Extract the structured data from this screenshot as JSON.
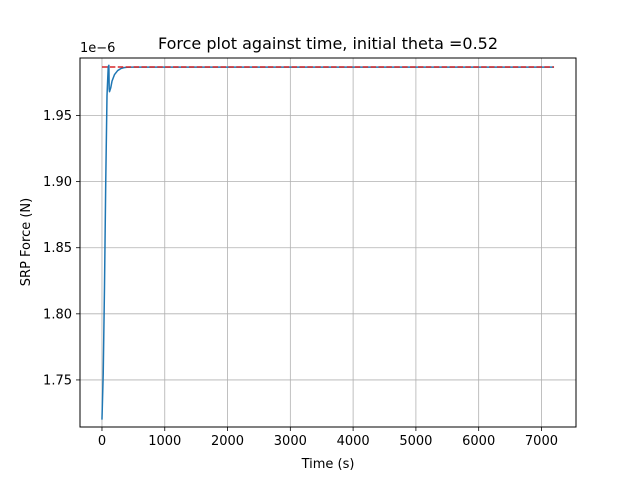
{
  "chart_data": {
    "type": "line",
    "title": "Force plot against time, initial theta =0.52",
    "xlabel": "Time (s)",
    "ylabel": "SRP Force (N)",
    "y_offset_text": "1e−6",
    "xlim": [
      -350,
      7550
    ],
    "ylim": [
      1.7144,
      1.9935
    ],
    "y_scale_factor": 1e-06,
    "grid": true,
    "x_ticks": [
      0,
      1000,
      2000,
      3000,
      4000,
      5000,
      6000,
      7000
    ],
    "x_tick_labels": [
      "0",
      "1000",
      "2000",
      "3000",
      "4000",
      "5000",
      "6000",
      "7000"
    ],
    "y_ticks": [
      1.75,
      1.8,
      1.85,
      1.9,
      1.95
    ],
    "y_tick_labels": [
      "1.75",
      "1.80",
      "1.85",
      "1.90",
      "1.95"
    ],
    "series": [
      {
        "style": "solid",
        "color": "#1f77b4",
        "x": [
          0,
          20,
          40,
          60,
          80,
          100,
          110,
          115,
          120,
          140,
          160,
          200,
          250,
          300,
          350,
          400,
          500,
          700,
          1000,
          2000,
          3000,
          4000,
          5000,
          6000,
          7000,
          7200
        ],
        "y": [
          1.72,
          1.755,
          1.82,
          1.9,
          1.965,
          1.987,
          1.988,
          1.97,
          1.968,
          1.971,
          1.976,
          1.981,
          1.984,
          1.9855,
          1.9862,
          1.9865,
          1.9866,
          1.9866,
          1.9866,
          1.9866,
          1.9866,
          1.9866,
          1.9866,
          1.9866,
          1.9866,
          1.9866
        ]
      },
      {
        "style": "dashed",
        "color": "#d62728",
        "x": [
          0,
          7200
        ],
        "y": [
          1.9867,
          1.9867
        ]
      }
    ]
  }
}
